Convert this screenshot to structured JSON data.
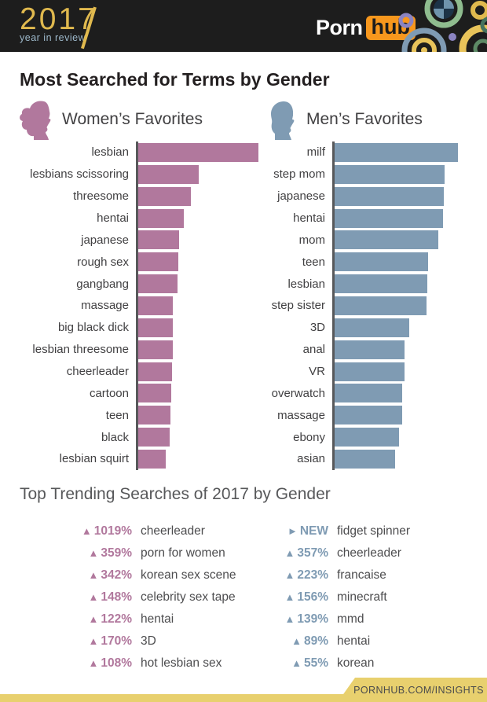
{
  "header": {
    "logo_year": "2017",
    "logo_tagline": "year in review",
    "brand_porn": "Porn",
    "brand_hub": "hub"
  },
  "title": "Most Searched for Terms by Gender",
  "legend": {
    "women": "Women’s Favorites",
    "men": "Men’s Favorites"
  },
  "colors": {
    "women_bar": "#b1789d",
    "men_bar": "#7f9bb3",
    "axis": "#58595b",
    "header_bg": "#1d1d1d",
    "logo_gold": "#e0b94e",
    "brand_orange": "#f7971d",
    "footer_gold": "#e8d06e"
  },
  "chart_data": [
    {
      "type": "bar",
      "orientation": "horizontal",
      "title": "Women’s Favorites",
      "note": "no numeric axis shown; values are relative bar lengths in px measured from the axis",
      "categories": [
        "lesbian",
        "lesbians scissoring",
        "threesome",
        "hentai",
        "japanese",
        "rough sex",
        "gangbang",
        "massage",
        "big black dick",
        "lesbian threesome",
        "cheerleader",
        "cartoon",
        "teen",
        "black",
        "lesbian squirt"
      ],
      "values": [
        153,
        77,
        67,
        58,
        52,
        51,
        50,
        44,
        44,
        44,
        43,
        42,
        41,
        40,
        35
      ]
    },
    {
      "type": "bar",
      "orientation": "horizontal",
      "title": "Men’s Favorites",
      "note": "no numeric axis shown; values are relative bar lengths in px measured from the axis",
      "categories": [
        "milf",
        "step mom",
        "japanese",
        "hentai",
        "mom",
        "teen",
        "lesbian",
        "step sister",
        "3D",
        "anal",
        "VR",
        "overwatch",
        "massage",
        "ebony",
        "asian"
      ],
      "values": [
        157,
        140,
        139,
        138,
        132,
        119,
        118,
        117,
        95,
        89,
        89,
        86,
        86,
        82,
        77
      ]
    }
  ],
  "trending": {
    "title": "Top Trending Searches of 2017 by Gender",
    "women": [
      {
        "arrow": "▲",
        "pct": "1019%",
        "term": "cheerleader"
      },
      {
        "arrow": "▲",
        "pct": "359%",
        "term": "porn for women"
      },
      {
        "arrow": "▲",
        "pct": "342%",
        "term": "korean sex scene"
      },
      {
        "arrow": "▲",
        "pct": "148%",
        "term": "celebrity sex tape"
      },
      {
        "arrow": "▲",
        "pct": "122%",
        "term": "hentai"
      },
      {
        "arrow": "▲",
        "pct": "170%",
        "term": "3D"
      },
      {
        "arrow": "▲",
        "pct": "108%",
        "term": "hot lesbian sex"
      }
    ],
    "men": [
      {
        "arrow": "►",
        "pct": "NEW",
        "term": "fidget spinner"
      },
      {
        "arrow": "▲",
        "pct": "357%",
        "term": "cheerleader"
      },
      {
        "arrow": "▲",
        "pct": "223%",
        "term": "francaise"
      },
      {
        "arrow": "▲",
        "pct": "156%",
        "term": "minecraft"
      },
      {
        "arrow": "▲",
        "pct": "139%",
        "term": "mmd"
      },
      {
        "arrow": "▲",
        "pct": "89%",
        "term": "hentai"
      },
      {
        "arrow": "▲",
        "pct": "55%",
        "term": "korean"
      }
    ]
  },
  "footer": {
    "label": "PORNHUB.COM/INSIGHTS"
  }
}
